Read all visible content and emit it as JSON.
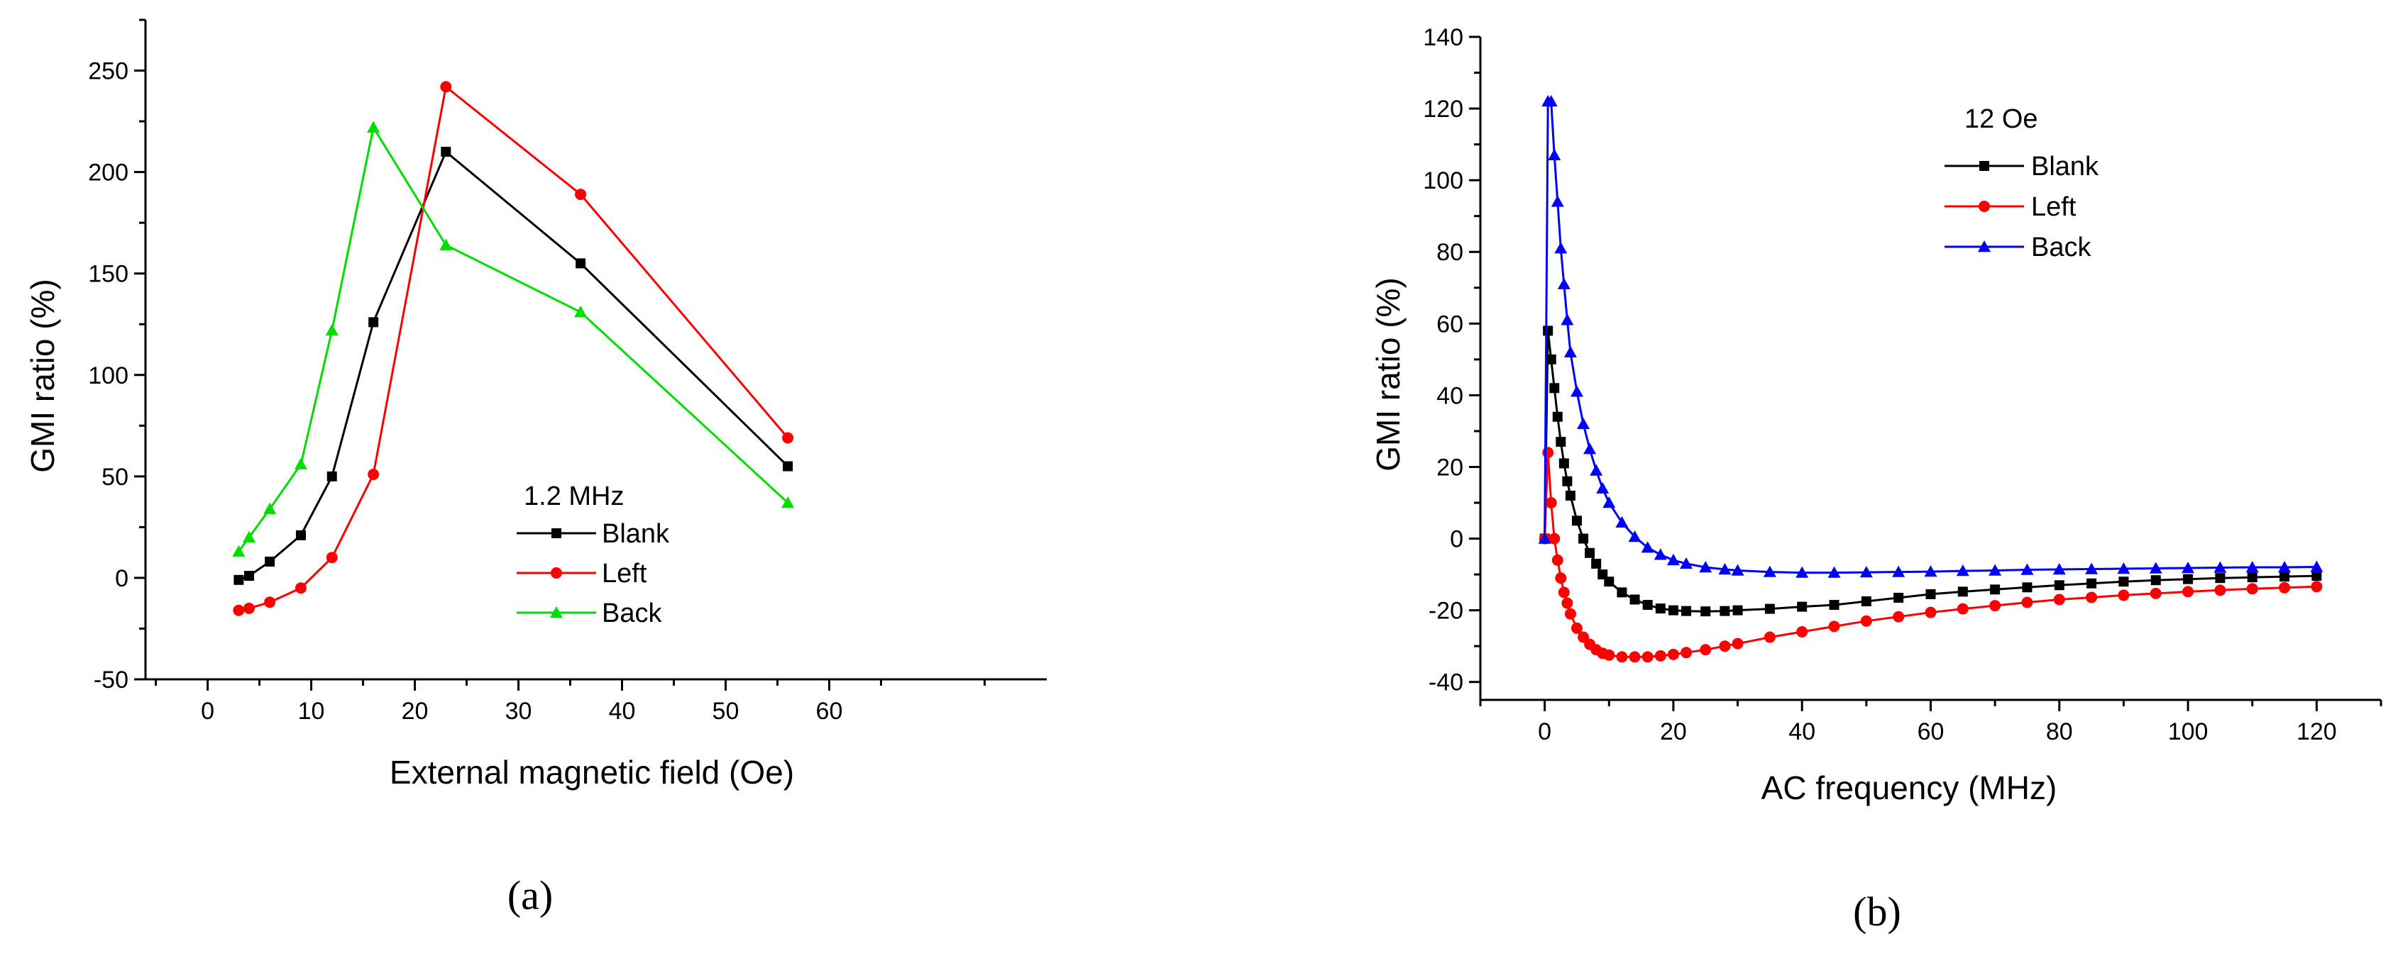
{
  "chart_data": [
    {
      "type": "line",
      "panel_label": "(a)",
      "xlabel": "External magnetic field (Oe)",
      "ylabel": "GMI ratio (%)",
      "xlim": [
        -6,
        81
      ],
      "ylim": [
        -50,
        275
      ],
      "xticks": [
        0,
        10,
        20,
        30,
        40,
        50,
        60
      ],
      "yticks": [
        -50,
        0,
        50,
        100,
        150,
        200,
        250
      ],
      "legend_title": "1.2 MHz",
      "legend_position": "center-right",
      "series": [
        {
          "name": "Blank",
          "color": "#000000",
          "marker": "square",
          "x": [
            3,
            4,
            6,
            9,
            12,
            16,
            23,
            36,
            56
          ],
          "y": [
            -1,
            1,
            8,
            21,
            50,
            126,
            210,
            155,
            55
          ]
        },
        {
          "name": "Left",
          "color": "#ff0000",
          "marker": "circle",
          "x": [
            3,
            4,
            6,
            9,
            12,
            16,
            23,
            36,
            56
          ],
          "y": [
            -16,
            -15,
            -12,
            -5,
            10,
            51,
            242,
            189,
            69
          ]
        },
        {
          "name": "Back",
          "color": "#00dd00",
          "marker": "triangle",
          "x": [
            3,
            4,
            6,
            9,
            12,
            16,
            23,
            36,
            56
          ],
          "y": [
            13,
            20,
            34,
            56,
            122,
            222,
            164,
            131,
            37
          ]
        }
      ]
    },
    {
      "type": "line",
      "panel_label": "(b)",
      "xlabel": "AC frequency (MHz)",
      "ylabel": "GMI ratio (%)",
      "xlim": [
        -10,
        130
      ],
      "ylim": [
        -45,
        140
      ],
      "xticks": [
        0,
        20,
        40,
        60,
        80,
        100,
        120
      ],
      "yticks": [
        -40,
        -20,
        0,
        20,
        40,
        60,
        80,
        100,
        120,
        140
      ],
      "legend_title": "12 Oe",
      "legend_position": "top-center",
      "series": [
        {
          "name": "Blank",
          "color": "#000000",
          "marker": "square",
          "x": [
            0,
            0.5,
            1,
            1.5,
            2,
            2.5,
            3,
            3.5,
            4,
            5,
            6,
            7,
            8,
            9,
            10,
            12,
            14,
            16,
            18,
            20,
            22,
            25,
            28,
            30,
            35,
            40,
            45,
            50,
            55,
            60,
            65,
            70,
            75,
            80,
            85,
            90,
            95,
            100,
            105,
            110,
            115,
            120
          ],
          "y": [
            0,
            58,
            50,
            42,
            34,
            27,
            21,
            16,
            12,
            5,
            0,
            -4,
            -7,
            -10,
            -12,
            -15,
            -17,
            -18.5,
            -19.5,
            -20,
            -20.2,
            -20.3,
            -20.2,
            -20,
            -19.6,
            -19,
            -18.5,
            -17.5,
            -16.5,
            -15.5,
            -14.8,
            -14.2,
            -13.6,
            -13,
            -12.5,
            -12,
            -11.6,
            -11.3,
            -11,
            -10.8,
            -10.6,
            -10.4
          ]
        },
        {
          "name": "Left",
          "color": "#ff0000",
          "marker": "circle",
          "x": [
            0,
            0.5,
            1,
            1.5,
            2,
            2.5,
            3,
            3.5,
            4,
            5,
            6,
            7,
            8,
            9,
            10,
            12,
            14,
            16,
            18,
            20,
            22,
            25,
            28,
            30,
            35,
            40,
            45,
            50,
            55,
            60,
            65,
            70,
            75,
            80,
            85,
            90,
            95,
            100,
            105,
            110,
            115,
            120
          ],
          "y": [
            0,
            24,
            10,
            0,
            -6,
            -11,
            -15,
            -18,
            -21,
            -25,
            -27.5,
            -29.5,
            -31,
            -32,
            -32.5,
            -33,
            -33,
            -33,
            -32.7,
            -32.3,
            -31.8,
            -31,
            -30,
            -29.3,
            -27.5,
            -26,
            -24.5,
            -23,
            -21.8,
            -20.6,
            -19.6,
            -18.7,
            -17.8,
            -17,
            -16.4,
            -15.8,
            -15.3,
            -14.8,
            -14.4,
            -14,
            -13.7,
            -13.4
          ]
        },
        {
          "name": "Back",
          "color": "#0000ff",
          "marker": "triangle",
          "x": [
            0,
            0.5,
            1,
            1.5,
            2,
            2.5,
            3,
            3.5,
            4,
            5,
            6,
            7,
            8,
            9,
            10,
            12,
            14,
            16,
            18,
            20,
            22,
            25,
            28,
            30,
            35,
            40,
            45,
            50,
            55,
            60,
            65,
            70,
            75,
            80,
            85,
            90,
            95,
            100,
            105,
            110,
            115,
            120
          ],
          "y": [
            0,
            122,
            122,
            107,
            94,
            81,
            71,
            61,
            52,
            41,
            32,
            25,
            19,
            14,
            10,
            4.5,
            0.5,
            -2.5,
            -4.5,
            -6,
            -7,
            -8,
            -8.6,
            -8.9,
            -9.3,
            -9.5,
            -9.5,
            -9.4,
            -9.3,
            -9.2,
            -9.0,
            -8.9,
            -8.7,
            -8.6,
            -8.5,
            -8.4,
            -8.3,
            -8.2,
            -8.1,
            -8.0,
            -8.0,
            -7.9
          ]
        }
      ]
    }
  ]
}
